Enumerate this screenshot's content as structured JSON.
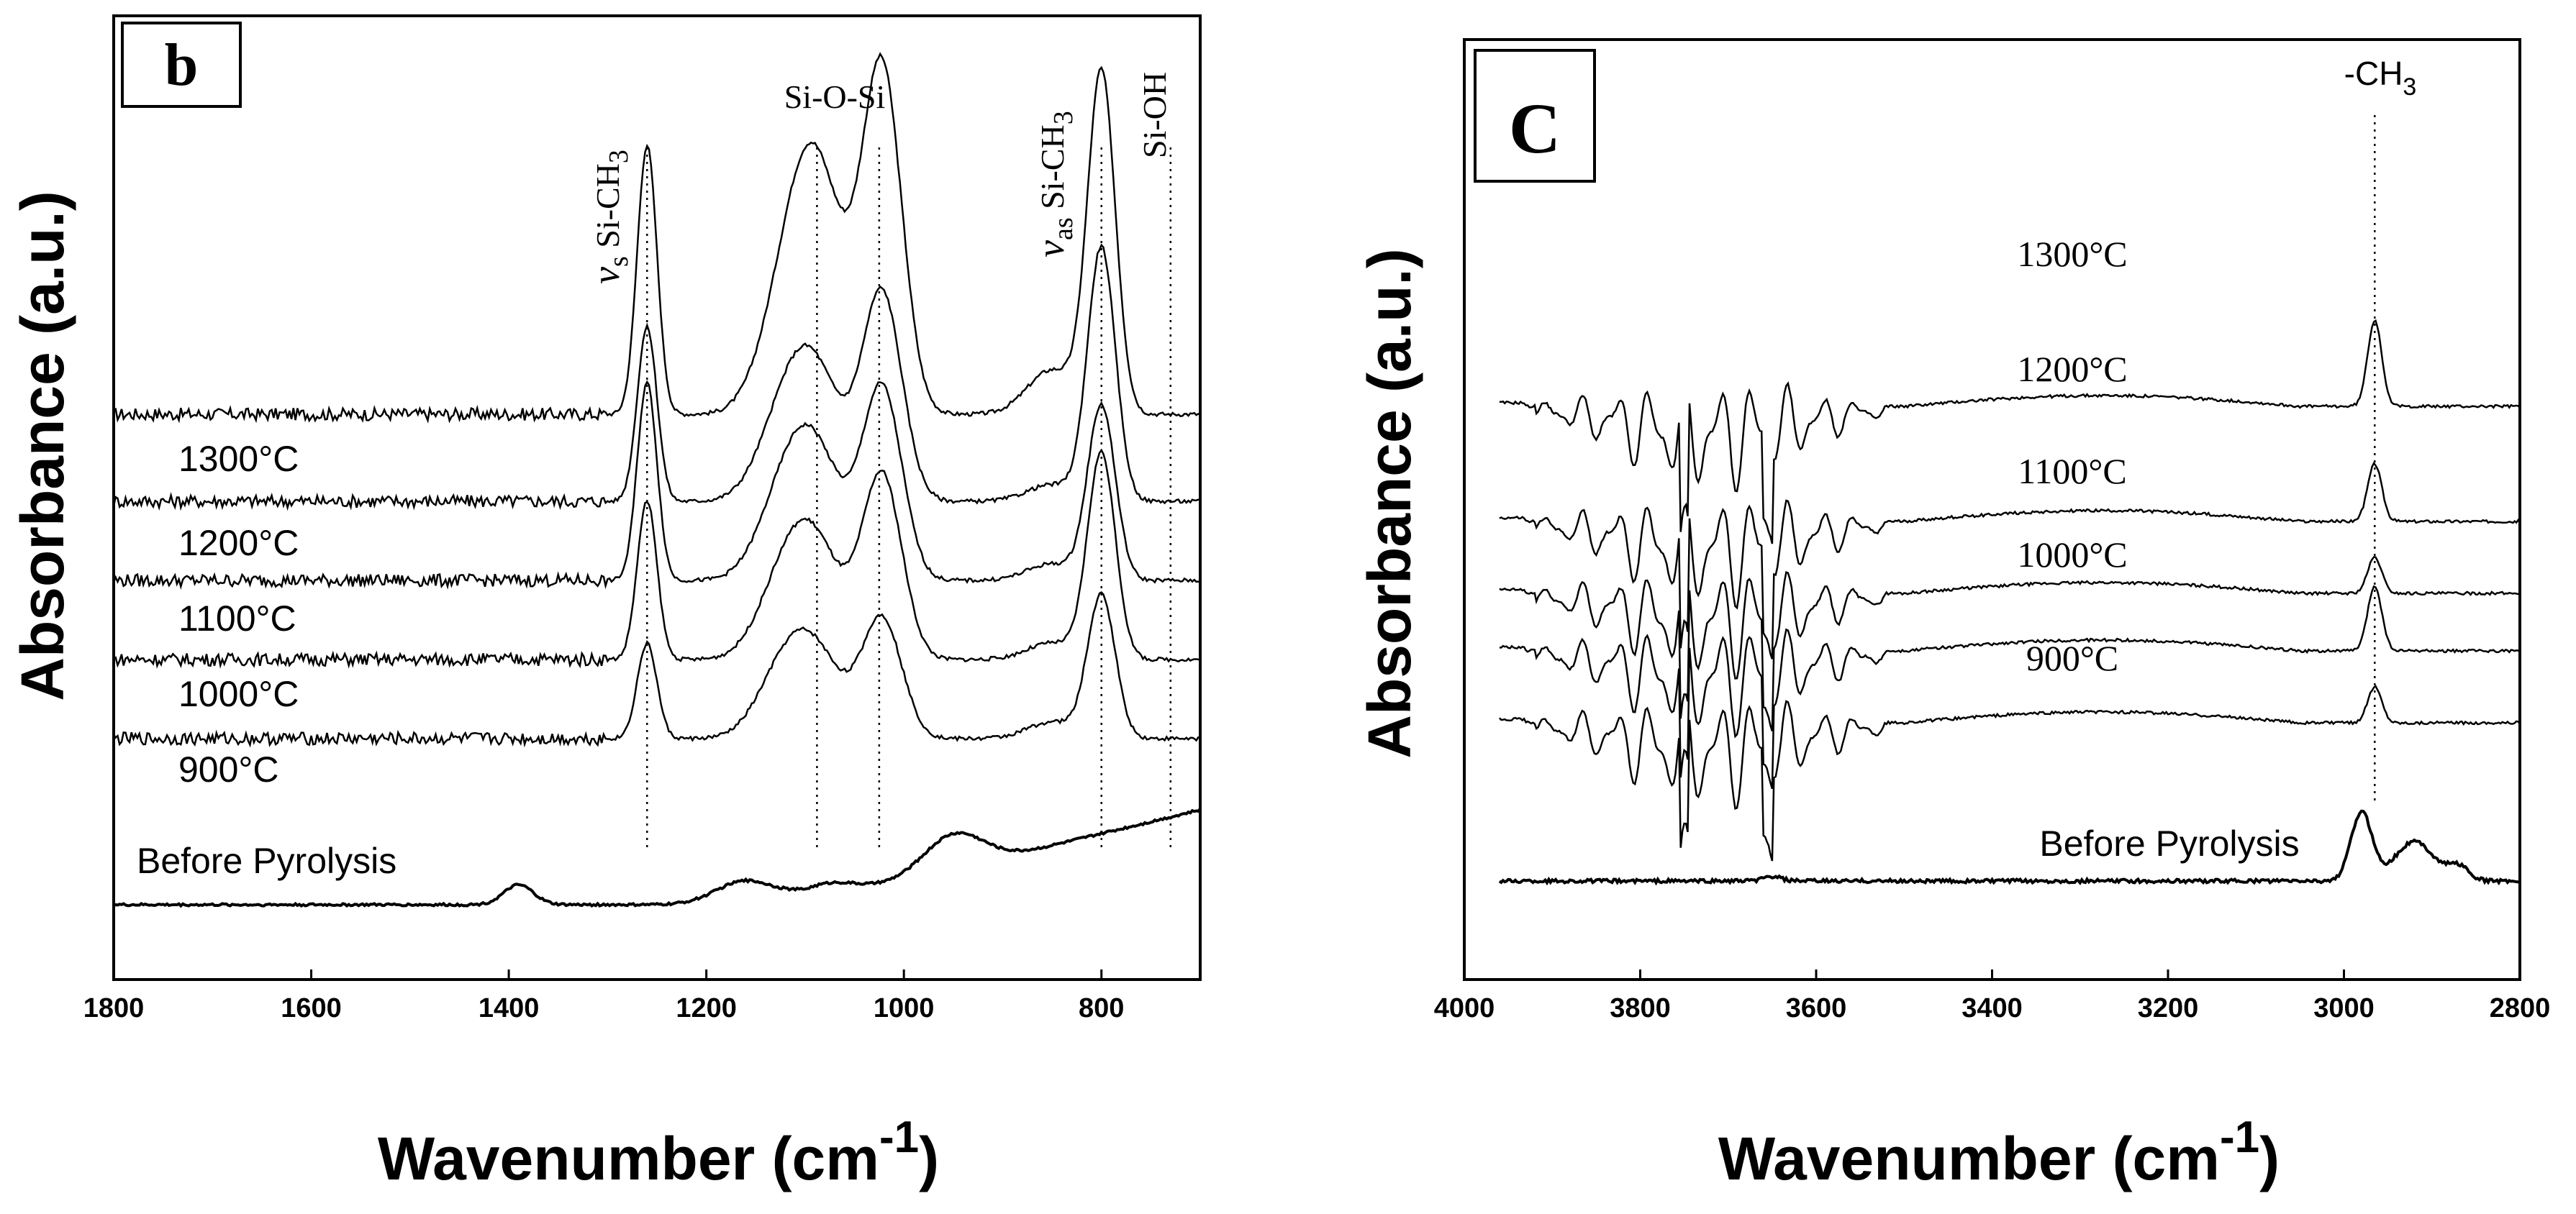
{
  "chart_data": [
    {
      "panel_label": "b",
      "type": "line",
      "xlabel": "Wavenumber (cm",
      "xlabel_sup": "-1",
      "xlabel_close": ")",
      "ylabel": "Absorbance (a.u.)",
      "xlim": [
        1800,
        700
      ],
      "xticks": [
        "1800",
        "1600",
        "1400",
        "1200",
        "1000",
        "800"
      ],
      "xtick_values": [
        1800,
        1600,
        1400,
        1200,
        1000,
        800
      ],
      "series_labels": [
        "1300°C",
        "1200°C",
        "1100°C",
        "1000°C",
        "900°C",
        "Before Pyrolysis"
      ],
      "annotations": [
        {
          "v": "v",
          "sub": "s",
          "text": " Si-CH",
          "sub2": "3",
          "x": 1260
        },
        {
          "text": "Si-O-Si",
          "x": 1090
        },
        {
          "v": "v",
          "sub": "as",
          "text": " Si-CH",
          "sub2": "3",
          "x": 800
        },
        {
          "text": "Si-OH",
          "x": 730
        }
      ],
      "guide_lines": [
        1260,
        1088,
        1025,
        800,
        730
      ],
      "series": [
        {
          "name": "1300°C",
          "offset": 6.2,
          "peaks": [
            [
              1260,
              3.4,
              10
            ],
            [
              1092,
              3.3,
              30
            ],
            [
              1022,
              4.3,
              20
            ],
            [
              800,
              4.3,
              14
            ]
          ]
        },
        {
          "name": "1200°C",
          "offset": 5.1,
          "peaks": [
            [
              1260,
              2.2,
              10
            ],
            [
              1095,
              1.8,
              30
            ],
            [
              1022,
              2.6,
              20
            ],
            [
              800,
              3.2,
              14
            ]
          ]
        },
        {
          "name": "1100°C",
          "offset": 4.1,
          "peaks": [
            [
              1260,
              2.5,
              10
            ],
            [
              1095,
              1.8,
              30
            ],
            [
              1022,
              2.4,
              20
            ],
            [
              800,
              2.2,
              14
            ]
          ]
        },
        {
          "name": "1000°C",
          "offset": 3.1,
          "peaks": [
            [
              1260,
              2.0,
              10
            ],
            [
              1095,
              1.6,
              30
            ],
            [
              1022,
              2.3,
              20
            ],
            [
              800,
              2.6,
              14
            ]
          ]
        },
        {
          "name": "900°C",
          "offset": 2.1,
          "peaks": [
            [
              1260,
              1.2,
              10
            ],
            [
              1095,
              1.2,
              30
            ],
            [
              1022,
              1.5,
              20
            ],
            [
              800,
              1.8,
              14
            ]
          ]
        },
        {
          "name": "Before Pyrolysis",
          "offset": 0.0,
          "peaks": [
            [
              1390,
              0.25,
              15
            ],
            [
              1160,
              0.3,
              30
            ],
            [
              1080,
              0.2,
              30
            ],
            [
              950,
              0.45,
              30
            ]
          ]
        }
      ]
    },
    {
      "panel_label": "C",
      "type": "line",
      "xlabel": "Wavenumber (cm",
      "xlabel_sup": "-1",
      "xlabel_close": ")",
      "ylabel": "Absorbance (a.u.)",
      "xlim": [
        4000,
        2800
      ],
      "xticks": [
        "4000",
        "3800",
        "3600",
        "3400",
        "3200",
        "3000",
        "2800"
      ],
      "xtick_values": [
        4000,
        3800,
        3600,
        3400,
        3200,
        3000,
        2800
      ],
      "series_labels": [
        "1300°C",
        "1200°C",
        "1100°C",
        "1000°C",
        "900°C",
        "Before Pyrolysis"
      ],
      "annotation": {
        "text": "-CH",
        "sub": "3",
        "x": 2965
      },
      "series": [
        {
          "name": "1300°C",
          "offset": 6.6,
          "peak": 1.2
        },
        {
          "name": "1200°C",
          "offset": 5.0,
          "peak": 0.8
        },
        {
          "name": "1100°C",
          "offset": 4.0,
          "peak": 0.5
        },
        {
          "name": "1000°C",
          "offset": 3.2,
          "peak": 0.9
        },
        {
          "name": "900°C",
          "offset": 2.2,
          "peak": 0.5
        },
        {
          "name": "Before Pyrolysis",
          "offset": 0.0,
          "peak": 0.9
        }
      ]
    }
  ]
}
